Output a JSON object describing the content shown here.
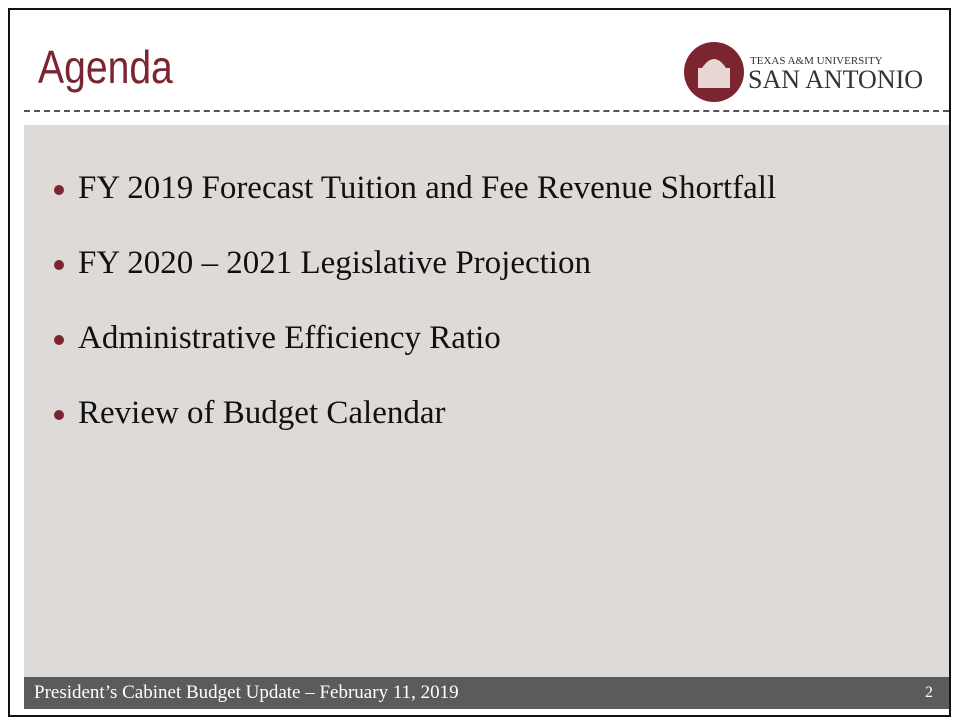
{
  "header": {
    "title": "Agenda",
    "logo_top": "TEXAS A&M UNIVERSITY",
    "logo_bottom": "SAN ANTONIO"
  },
  "bullets": [
    "FY 2019 Forecast Tuition and Fee Revenue Shortfall",
    "FY 2020 – 2021 Legislative Projection",
    "Administrative Efficiency Ratio",
    "Review of Budget Calendar"
  ],
  "footer": {
    "text": "President’s Cabinet Budget Update – February 11, 2019",
    "page": "2"
  }
}
